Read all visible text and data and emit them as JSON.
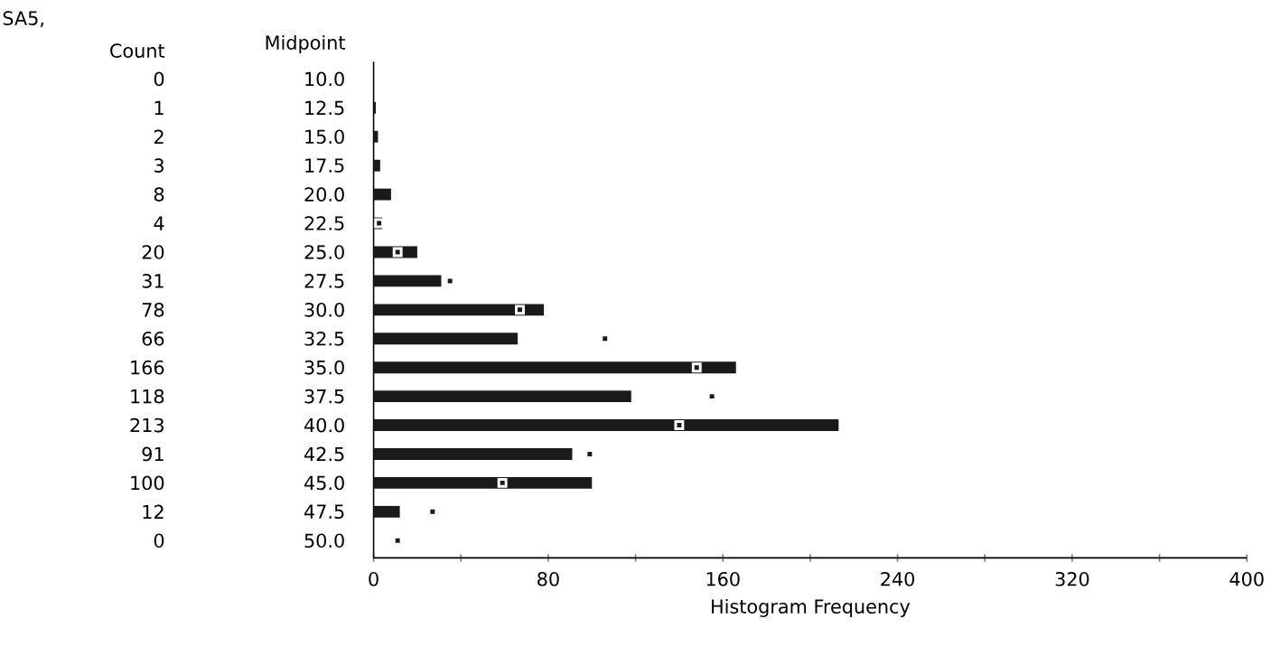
{
  "chart_data": {
    "type": "bar",
    "orientation": "horizontal",
    "title": "SA5,",
    "ylabel": "Midpoint",
    "xlabel": "Histogram Frequency",
    "annotations": [
      "Count"
    ],
    "categories": [
      "10.0",
      "12.5",
      "15.0",
      "17.5",
      "20.0",
      "22.5",
      "25.0",
      "27.5",
      "30.0",
      "32.5",
      "35.0",
      "37.5",
      "40.0",
      "42.5",
      "45.0",
      "47.5",
      "50.0"
    ],
    "series": [
      {
        "color": "#1a1a1a",
        "values": [
          0,
          1,
          2,
          3,
          8,
          4,
          20,
          31,
          78,
          66,
          166,
          118,
          213,
          91,
          100,
          12,
          0
        ],
        "value_labels": [
          "0",
          "1",
          "2",
          "3",
          "8",
          "4",
          "20",
          "31",
          "78",
          "66",
          "166",
          "118",
          "213",
          "91",
          "100",
          "12",
          "0"
        ]
      },
      {
        "type": "scatter",
        "color": "#1a1a1a",
        "values": [
          null,
          null,
          null,
          null,
          null,
          2.5,
          11,
          35,
          67,
          106,
          148,
          155,
          140,
          99,
          59,
          27,
          11
        ]
      }
    ],
    "marker": "square",
    "grid": false,
    "xlim": [
      0,
      400
    ],
    "xticks": [
      0,
      {
        "value": 40,
        "label": null
      },
      80,
      {
        "value": 120,
        "label": null
      },
      160,
      {
        "value": 200,
        "label": null
      },
      240,
      {
        "value": 280,
        "label": null
      },
      320,
      {
        "value": 360,
        "label": null
      },
      400
    ]
  }
}
